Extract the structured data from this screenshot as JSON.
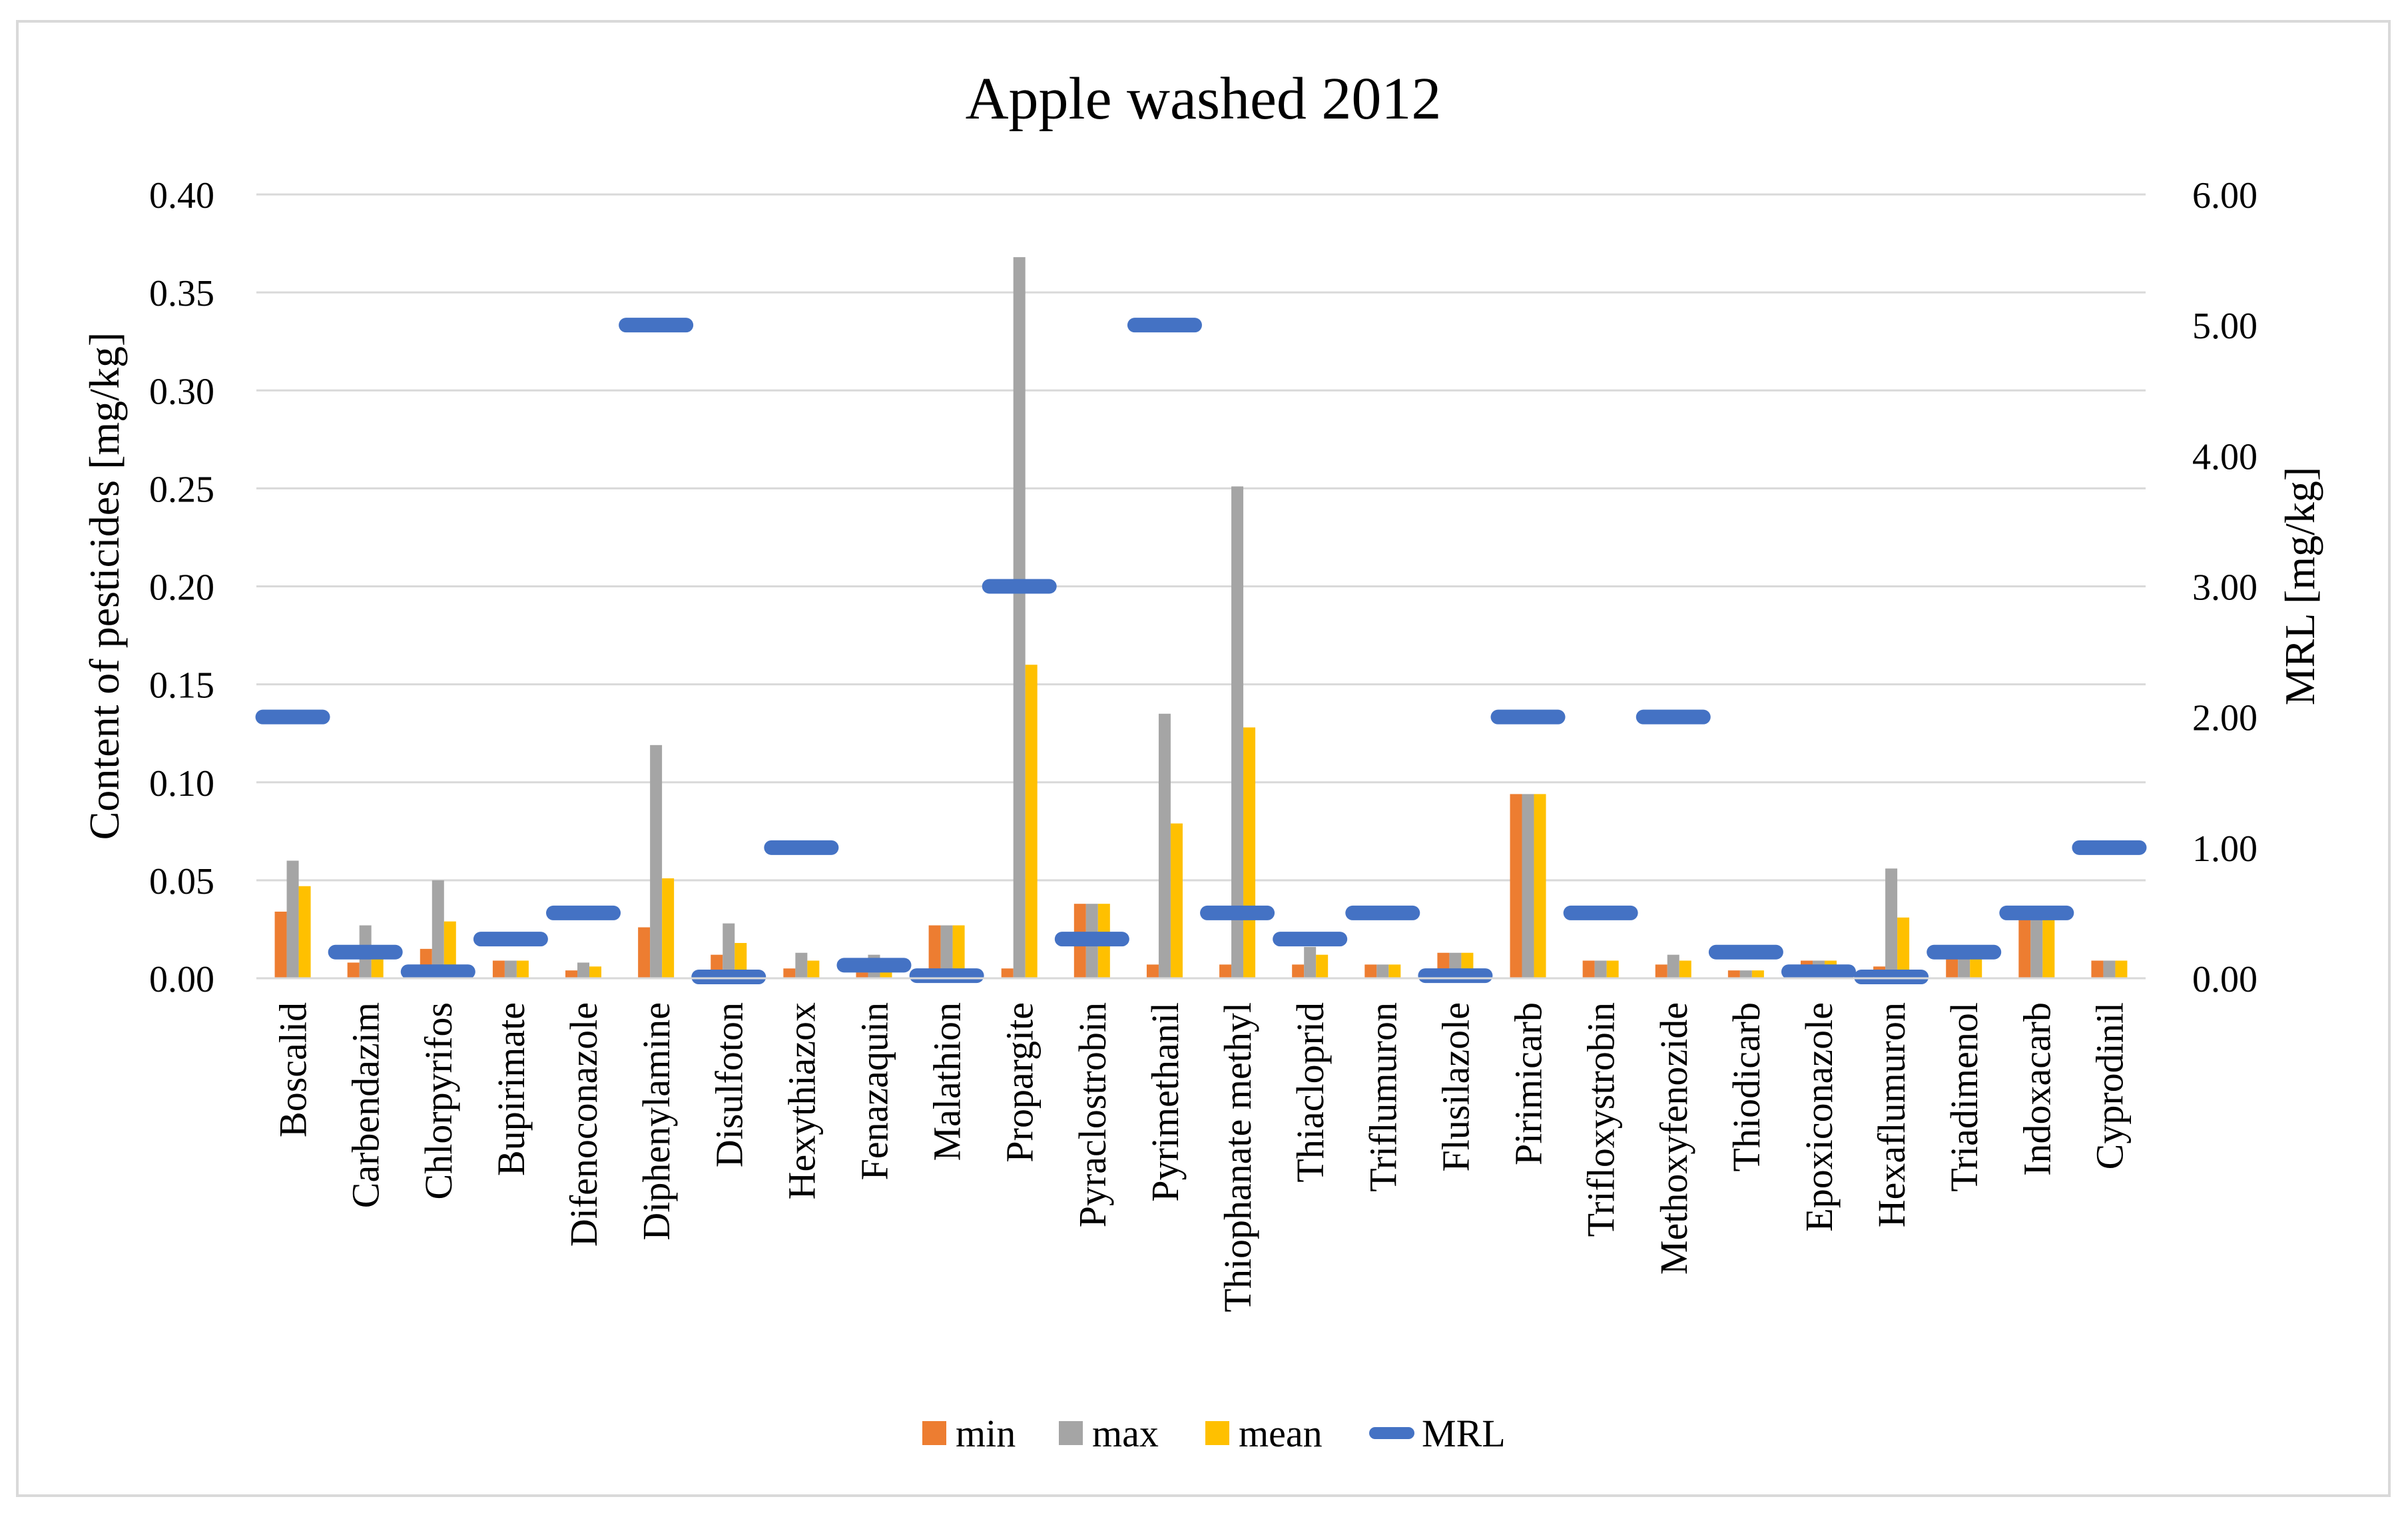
{
  "chart_data": {
    "type": "bar",
    "title": "Apple washed 2012",
    "ylabel": "Content of pesticides [mg/kg]",
    "y2label": "MRL [mg/kg]",
    "ylim": [
      0,
      0.4
    ],
    "y2lim": [
      0,
      6
    ],
    "y_ticks": [
      "0.00",
      "0.05",
      "0.10",
      "0.15",
      "0.20",
      "0.25",
      "0.30",
      "0.35",
      "0.40"
    ],
    "y2_ticks": [
      "0.00",
      "1.00",
      "2.00",
      "3.00",
      "4.00",
      "5.00",
      "6.00"
    ],
    "grid": true,
    "legend_position": "bottom",
    "categories": [
      "Boscalid",
      "Carbendazim",
      "Chlorpyrifos",
      "Bupirimate",
      "Difenoconazole",
      "Diphenylamine",
      "Disulfoton",
      "Hexythiazox",
      "Fenazaquin",
      "Malathion",
      "Propargite",
      "Pyraclostrobin",
      "Pyrimethanil",
      "Thiophanate methyl",
      "Thiacloprid",
      "Triflumuron",
      "Flusilazole",
      "Pirimicarb",
      "Trifloxystrobin",
      "Methoxyfenozide",
      "Thiodicarb",
      "Epoxiconazole",
      "Hexaflumuron",
      "Triadimenol",
      "Indoxacarb",
      "Cyprodinil"
    ],
    "series": [
      {
        "name": "min",
        "color": "#ed7d31",
        "axis": "left",
        "values": [
          0.034,
          0.008,
          0.015,
          0.009,
          0.004,
          0.026,
          0.012,
          0.005,
          0.003,
          0.027,
          0.005,
          0.038,
          0.007,
          0.007,
          0.007,
          0.007,
          0.013,
          0.094,
          0.009,
          0.007,
          0.004,
          0.009,
          0.006,
          0.012,
          0.031,
          0.009
        ]
      },
      {
        "name": "max",
        "color": "#a5a5a5",
        "axis": "left",
        "values": [
          0.06,
          0.027,
          0.05,
          0.009,
          0.008,
          0.119,
          0.028,
          0.013,
          0.012,
          0.027,
          0.368,
          0.038,
          0.135,
          0.251,
          0.016,
          0.007,
          0.013,
          0.094,
          0.009,
          0.012,
          0.004,
          0.009,
          0.056,
          0.012,
          0.031,
          0.009
        ]
      },
      {
        "name": "mean",
        "color": "#ffc000",
        "axis": "left",
        "values": [
          0.047,
          0.015,
          0.029,
          0.009,
          0.006,
          0.051,
          0.018,
          0.009,
          0.008,
          0.027,
          0.16,
          0.038,
          0.079,
          0.128,
          0.012,
          0.007,
          0.013,
          0.094,
          0.009,
          0.009,
          0.004,
          0.009,
          0.031,
          0.012,
          0.031,
          0.009
        ]
      },
      {
        "name": "MRL",
        "color": "#4472c4",
        "axis": "right",
        "values": [
          2.0,
          0.2,
          0.05,
          0.3,
          0.5,
          5.0,
          0.01,
          1.0,
          0.1,
          0.02,
          3.0,
          0.3,
          5.0,
          0.5,
          0.3,
          0.5,
          0.02,
          2.0,
          0.5,
          2.0,
          0.2,
          0.05,
          0.01,
          0.2,
          0.5,
          1.0
        ]
      }
    ]
  }
}
